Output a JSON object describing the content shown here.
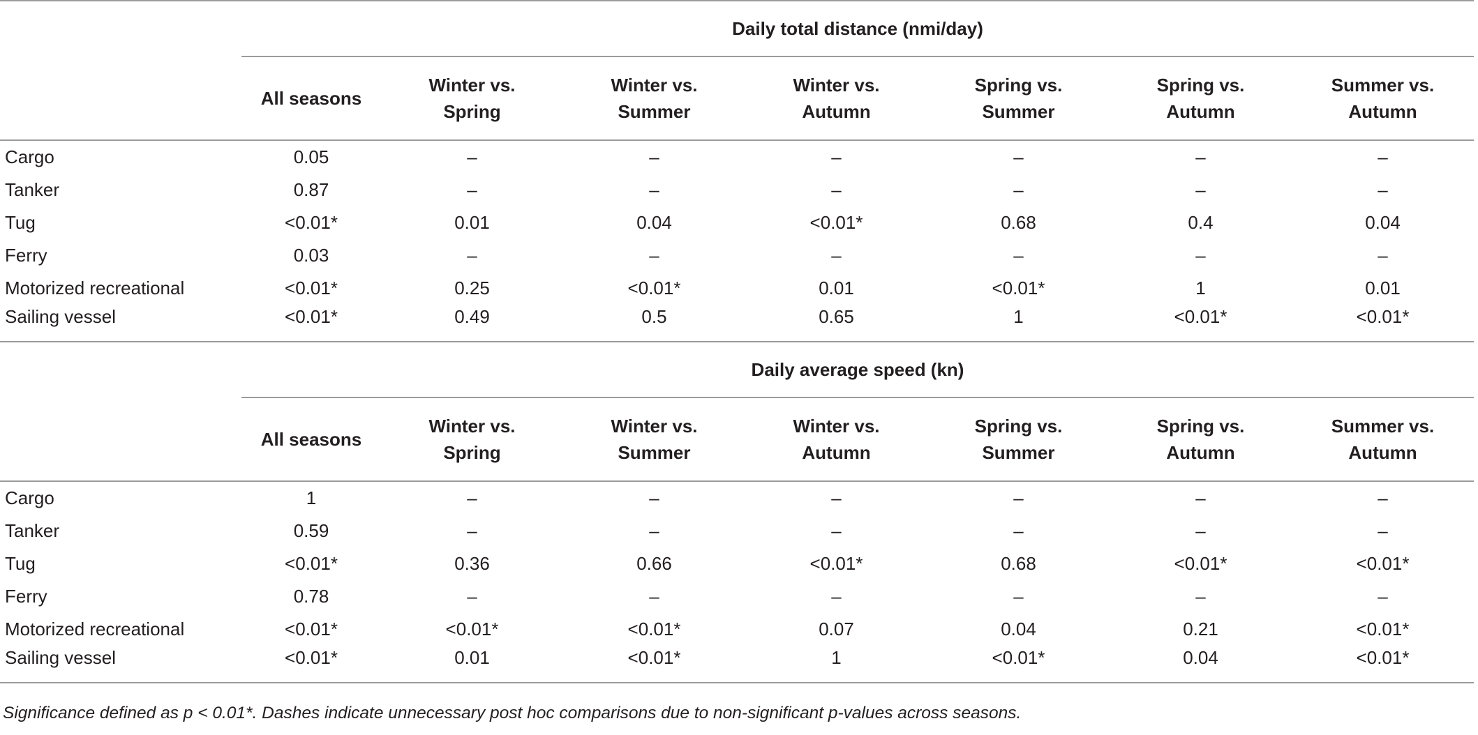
{
  "columns": [
    "All seasons",
    "Winter vs.\nSpring",
    "Winter vs.\nSummer",
    "Winter vs.\nAutumn",
    "Spring vs.\nSummer",
    "Spring vs.\nAutumn",
    "Summer vs.\nAutumn"
  ],
  "sections": [
    {
      "title": "Daily total distance (nmi/day)",
      "rows": [
        {
          "label": "Cargo",
          "values": [
            "0.05",
            "–",
            "–",
            "–",
            "–",
            "–",
            "–"
          ]
        },
        {
          "label": "Tanker",
          "values": [
            "0.87",
            "–",
            "–",
            "–",
            "–",
            "–",
            "–"
          ]
        },
        {
          "label": "Tug",
          "values": [
            "<0.01*",
            "0.01",
            "0.04",
            "<0.01*",
            "0.68",
            "0.4",
            "0.04"
          ]
        },
        {
          "label": "Ferry",
          "values": [
            "0.03",
            "–",
            "–",
            "–",
            "–",
            "–",
            "–"
          ]
        },
        {
          "label": "Motorized recreational",
          "values": [
            "<0.01*",
            "0.25",
            "<0.01*",
            "0.01",
            "<0.01*",
            "1",
            "0.01"
          ]
        },
        {
          "label": "Sailing vessel",
          "values": [
            "<0.01*",
            "0.49",
            "0.5",
            "0.65",
            "1",
            "<0.01*",
            "<0.01*"
          ]
        }
      ]
    },
    {
      "title": "Daily average speed (kn)",
      "rows": [
        {
          "label": "Cargo",
          "values": [
            "1",
            "–",
            "–",
            "–",
            "–",
            "–",
            "–"
          ]
        },
        {
          "label": "Tanker",
          "values": [
            "0.59",
            "–",
            "–",
            "–",
            "–",
            "–",
            "–"
          ]
        },
        {
          "label": "Tug",
          "values": [
            "<0.01*",
            "0.36",
            "0.66",
            "<0.01*",
            "0.68",
            "<0.01*",
            "<0.01*"
          ]
        },
        {
          "label": "Ferry",
          "values": [
            "0.78",
            "–",
            "–",
            "–",
            "–",
            "–",
            "–"
          ]
        },
        {
          "label": "Motorized recreational",
          "values": [
            "<0.01*",
            "<0.01*",
            "<0.01*",
            "0.07",
            "0.04",
            "0.21",
            "<0.01*"
          ]
        },
        {
          "label": "Sailing vessel",
          "values": [
            "<0.01*",
            "0.01",
            "<0.01*",
            "1",
            "<0.01*",
            "0.04",
            "<0.01*"
          ]
        }
      ]
    }
  ],
  "footnote": "Significance defined as p < 0.01*. Dashes indicate unnecessary post hoc comparisons due to non-significant p-values across seasons."
}
